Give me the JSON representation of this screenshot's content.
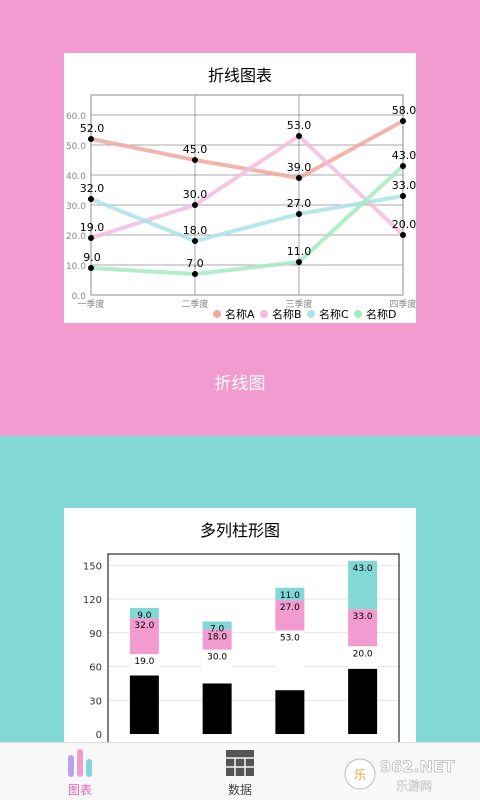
{
  "panels": {
    "line_label": "折线图"
  },
  "colors": {
    "top_background": "#f29bd0",
    "bottom_background": "#81d8d6",
    "series_A": "#f1a79f",
    "series_B": "#f5bde0",
    "series_C": "#a9e3e6",
    "series_D": "#a6ebc3",
    "bar_A": "#000000",
    "bar_B": "#f29bd0",
    "bar_C": "#81d8d6",
    "tab_active": "#e85fb1"
  },
  "chart_data": [
    {
      "type": "line",
      "title": "折线图表",
      "categories": [
        "一季度",
        "二季度",
        "三季度",
        "四季度"
      ],
      "series": [
        {
          "name": "名称A",
          "values": [
            52.0,
            45.0,
            39.0,
            58.0
          ],
          "labels": [
            "52.0",
            "45.0",
            "39.0",
            "58.0"
          ]
        },
        {
          "name": "名称B",
          "values": [
            19.0,
            30.0,
            53.0,
            20.0
          ],
          "labels": [
            "19.0",
            "30.0",
            "53.0",
            "20.0"
          ]
        },
        {
          "name": "名称C",
          "values": [
            32.0,
            18.0,
            27.0,
            33.0
          ],
          "labels": [
            "32.0",
            "18.0",
            "27.0",
            "33.0"
          ]
        },
        {
          "name": "名称D",
          "values": [
            9.0,
            7.0,
            11.0,
            43.0
          ],
          "labels": [
            "9.0",
            "7.0",
            "11.0",
            "43.0"
          ]
        }
      ],
      "ylim": [
        0,
        60
      ],
      "yticks": [
        "0.0",
        "10.0",
        "20.0",
        "30.0",
        "40.0",
        "50.0",
        "60.0"
      ],
      "grid": true,
      "legend": "bottom-right"
    },
    {
      "type": "bar",
      "stacked": true,
      "title": "多列柱形图",
      "categories": [
        "",
        "",
        "",
        ""
      ],
      "series": [
        {
          "values": [
            52,
            45,
            39,
            58
          ]
        },
        {
          "values": [
            19.0,
            30.0,
            53.0,
            20.0
          ],
          "labels": [
            "19.0",
            "30.0",
            "53.0",
            "20.0"
          ]
        },
        {
          "values": [
            32.0,
            18.0,
            27.0,
            33.0
          ],
          "labels": [
            "32.0",
            "18.0",
            "27.0",
            "33.0"
          ]
        },
        {
          "values": [
            9.0,
            7.0,
            11.0,
            43.0
          ],
          "labels": [
            "9.0",
            "7.0",
            "11.0",
            "43.0"
          ]
        }
      ],
      "ylim": [
        0,
        160
      ],
      "yticks": [
        "0",
        "30",
        "60",
        "90",
        "120",
        "150"
      ],
      "grid": true
    }
  ],
  "tabbar": {
    "tabs": [
      {
        "label": "图表",
        "icon": "bar-chart-icon",
        "active": true
      },
      {
        "label": "数据",
        "icon": "grid-icon",
        "active": false
      }
    ]
  },
  "watermark": {
    "brand": "962.NET",
    "subtitle": "乐游网"
  }
}
